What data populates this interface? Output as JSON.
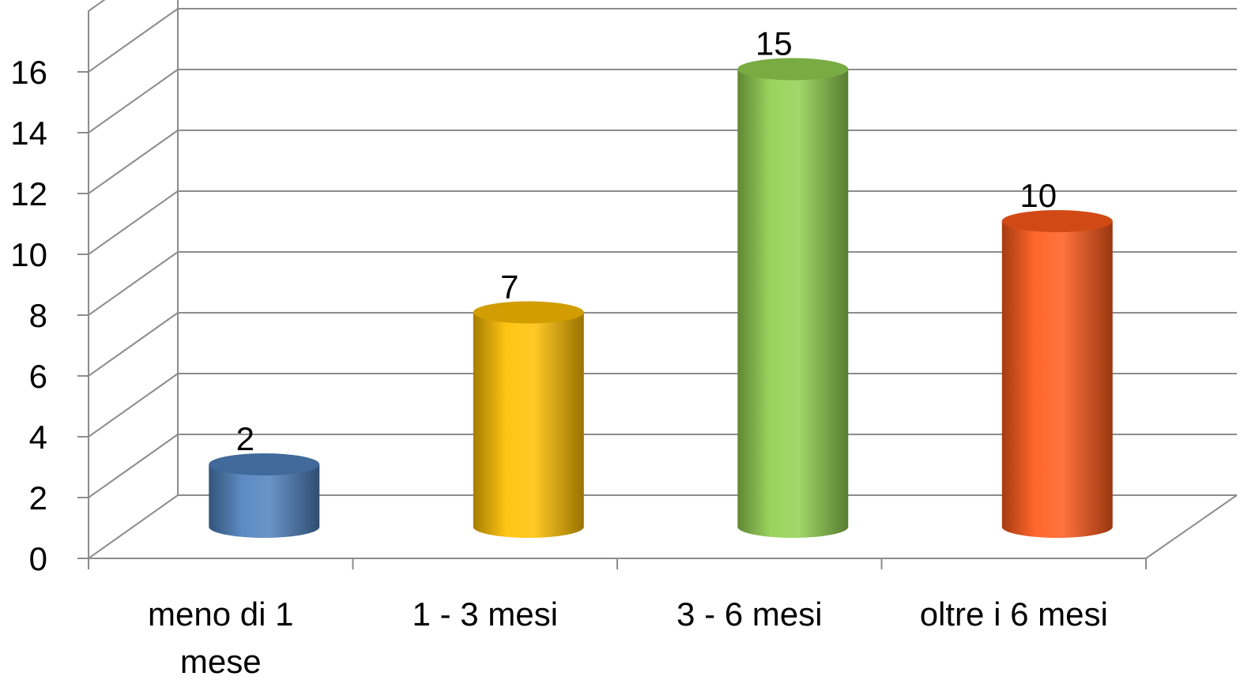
{
  "chart_data": {
    "type": "bar",
    "style": "3d-cylinder",
    "categories": [
      "meno di 1 mese",
      "1 - 3 mesi",
      "3 - 6 mesi",
      "oltre i 6 mesi"
    ],
    "category_lines": [
      [
        "meno di 1",
        "mese"
      ],
      [
        "1 - 3 mesi"
      ],
      [
        "3 - 6 mesi"
      ],
      [
        "oltre i 6 mesi"
      ]
    ],
    "values": [
      2,
      7,
      15,
      10
    ],
    "data_labels": [
      "2",
      "7",
      "15",
      "10"
    ],
    "colors": [
      "#4F81BD",
      "#FFC000",
      "#92D050",
      "#FF5A1A"
    ],
    "yticks": [
      0,
      2,
      4,
      6,
      8,
      10,
      12,
      14,
      16
    ],
    "ytick_labels": [
      "0",
      "2",
      "4",
      "6",
      "8",
      "10",
      "12",
      "14",
      "16"
    ],
    "ylim": [
      0,
      18
    ],
    "grid": true,
    "legend": "none",
    "title": "",
    "xlabel": "",
    "ylabel": ""
  }
}
